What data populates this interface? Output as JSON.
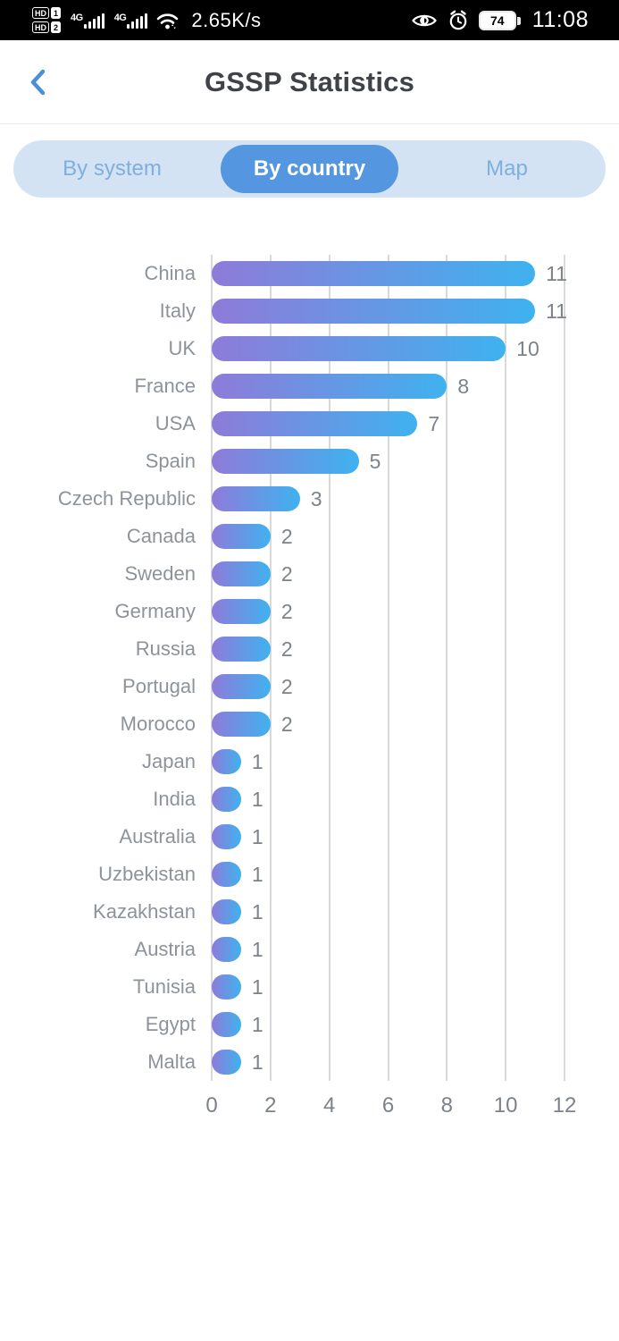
{
  "status_bar": {
    "sim_badges": [
      {
        "label": "HD",
        "num": "1"
      },
      {
        "label": "HD",
        "num": "2"
      }
    ],
    "networks": [
      "4G",
      "4G"
    ],
    "speed": "2.65K/s",
    "battery_percent": "74",
    "time": "11:08"
  },
  "header": {
    "title": "GSSP Statistics"
  },
  "tabs": {
    "items": [
      {
        "label": "By system",
        "active": false
      },
      {
        "label": "By country",
        "active": true
      },
      {
        "label": "Map",
        "active": false
      }
    ]
  },
  "chart_data": {
    "type": "bar",
    "orientation": "horizontal",
    "categories": [
      "China",
      "Italy",
      "UK",
      "France",
      "USA",
      "Spain",
      "Czech Republic",
      "Canada",
      "Sweden",
      "Germany",
      "Russia",
      "Portugal",
      "Morocco",
      "Japan",
      "India",
      "Australia",
      "Uzbekistan",
      "Kazakhstan",
      "Austria",
      "Tunisia",
      "Egypt",
      "Malta"
    ],
    "values": [
      11,
      11,
      10,
      8,
      7,
      5,
      3,
      2,
      2,
      2,
      2,
      2,
      2,
      1,
      1,
      1,
      1,
      1,
      1,
      1,
      1,
      1
    ],
    "x_ticks": [
      0,
      2,
      4,
      6,
      8,
      10,
      12
    ],
    "xlim": [
      0,
      12
    ],
    "grid": "vertical-gridlines",
    "value_labels": true,
    "legend": "none",
    "title": "",
    "bar_gradient": [
      "#8E7BD9",
      "#3FB2EF"
    ],
    "gridline_color": "#D9D9D9",
    "category_label_color": "#8D939B",
    "value_label_color": "#7C828B"
  },
  "colors": {
    "status_bg": "#000000",
    "accent_blue": "#5596E0",
    "tab_bg": "#D3E3F4",
    "tab_inactive_text": "#7FAEDF",
    "back_arrow": "#4A90D9",
    "title_text": "#3F4348"
  }
}
